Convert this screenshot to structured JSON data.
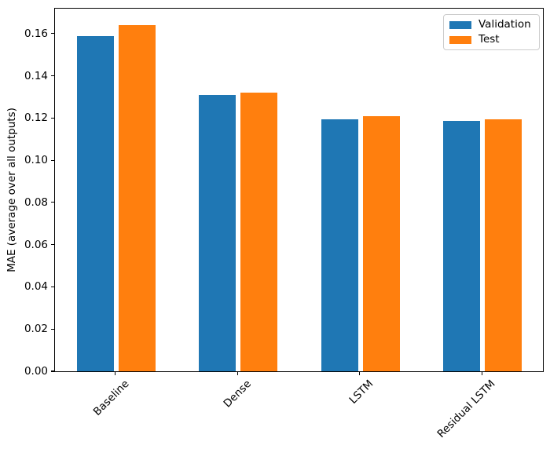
{
  "figure": {
    "background": "#ffffff",
    "spine_color": "#000000"
  },
  "chart_data": {
    "type": "bar",
    "title": "",
    "xlabel": "",
    "ylabel": "MAE (average over all outputs)",
    "categories": [
      "Baseline",
      "Dense",
      "LSTM",
      "Residual LSTM"
    ],
    "series": [
      {
        "name": "Validation",
        "color": "#1f77b4",
        "values": [
          0.159,
          0.131,
          0.1195,
          0.1185
        ]
      },
      {
        "name": "Test",
        "color": "#ff7f0e",
        "values": [
          0.164,
          0.132,
          0.121,
          0.1195
        ]
      }
    ],
    "yticks": [
      0.0,
      0.02,
      0.04,
      0.06,
      0.08,
      0.1,
      0.12,
      0.14,
      0.16
    ],
    "ylim": [
      0,
      0.1722
    ],
    "bar_width": 0.3,
    "offsets": [
      -0.17,
      0.17
    ],
    "xtick_rotation": 45,
    "grid": false,
    "legend": {
      "position": "upper right",
      "labels": [
        "Validation",
        "Test"
      ]
    }
  }
}
